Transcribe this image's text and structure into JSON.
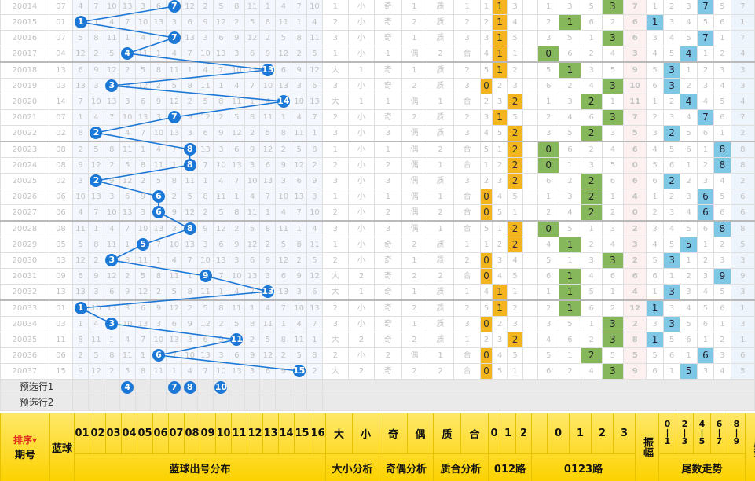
{
  "rows": [
    {
      "p": "20014",
      "b": "07",
      "pos": 7,
      "bigs": "小",
      "big": 1,
      "odd": true,
      "prime": true,
      "r012": 1,
      "r0123": 3,
      "amp": "7",
      "tail": 7,
      "sep": false
    },
    {
      "p": "20015",
      "b": "01",
      "pos": 1,
      "bigs": "小",
      "big": 1,
      "odd": true,
      "prime": true,
      "r012": 1,
      "r0123": 1,
      "amp": "6",
      "tail": 1,
      "sep": false
    },
    {
      "p": "20016",
      "b": "07",
      "pos": 7,
      "bigs": "小",
      "big": 1,
      "odd": true,
      "prime": true,
      "r012": 1,
      "r0123": 3,
      "amp": "6",
      "tail": 7,
      "sep": false
    },
    {
      "p": "20017",
      "b": "04",
      "pos": 4,
      "bigs": "小",
      "big": 1,
      "odd": false,
      "prime": false,
      "r012": 1,
      "r0123": 0,
      "amp": "3",
      "tail": 4,
      "sep": false
    },
    {
      "p": "20018",
      "b": "13",
      "pos": 13,
      "bigs": "大",
      "big": 2,
      "odd": true,
      "prime": true,
      "r012": 1,
      "r0123": 1,
      "amp": "9",
      "tail": 3,
      "sep": true
    },
    {
      "p": "20019",
      "b": "03",
      "pos": 3,
      "bigs": "小",
      "big": 1,
      "odd": true,
      "prime": true,
      "r012": 0,
      "r0123": 3,
      "amp": "10",
      "tail": 3,
      "sep": false
    },
    {
      "p": "20020",
      "b": "14",
      "pos": 14,
      "bigs": "大",
      "big": 2,
      "odd": false,
      "prime": false,
      "r012": 2,
      "r0123": 2,
      "amp": "11",
      "tail": 4,
      "sep": false
    },
    {
      "p": "20021",
      "b": "07",
      "pos": 7,
      "bigs": "小",
      "big": 1,
      "odd": true,
      "prime": true,
      "r012": 1,
      "r0123": 3,
      "amp": "7",
      "tail": 7,
      "sep": false
    },
    {
      "p": "20022",
      "b": "02",
      "pos": 2,
      "bigs": "小",
      "big": 1,
      "odd": false,
      "prime": true,
      "r012": 2,
      "r0123": 2,
      "amp": "5",
      "tail": 2,
      "sep": false
    },
    {
      "p": "20023",
      "b": "08",
      "pos": 8,
      "bigs": "小",
      "big": 1,
      "odd": false,
      "prime": false,
      "r012": 2,
      "r0123": 0,
      "amp": "6",
      "tail": 8,
      "sep": true
    },
    {
      "p": "20024",
      "b": "08",
      "pos": 8,
      "bigs": "小",
      "big": 1,
      "odd": false,
      "prime": false,
      "r012": 2,
      "r0123": 0,
      "amp": "0",
      "tail": 8,
      "sep": false
    },
    {
      "p": "20025",
      "b": "02",
      "pos": 2,
      "bigs": "小",
      "big": 1,
      "odd": false,
      "prime": true,
      "r012": 2,
      "r0123": 2,
      "amp": "6",
      "tail": 2,
      "sep": false
    },
    {
      "p": "20026",
      "b": "06",
      "pos": 6,
      "bigs": "小",
      "big": 1,
      "odd": false,
      "prime": false,
      "r012": 0,
      "r0123": 2,
      "amp": "4",
      "tail": 6,
      "sep": false
    },
    {
      "p": "20027",
      "b": "06",
      "pos": 6,
      "bigs": "小",
      "big": 1,
      "odd": false,
      "prime": false,
      "r012": 0,
      "r0123": 2,
      "amp": "0",
      "tail": 6,
      "sep": false
    },
    {
      "p": "20028",
      "b": "08",
      "pos": 8,
      "bigs": "小",
      "big": 1,
      "odd": false,
      "prime": false,
      "r012": 2,
      "r0123": 0,
      "amp": "2",
      "tail": 8,
      "sep": true
    },
    {
      "p": "20029",
      "b": "05",
      "pos": 5,
      "bigs": "小",
      "big": 1,
      "odd": true,
      "prime": true,
      "r012": 2,
      "r0123": 1,
      "amp": "3",
      "tail": 5,
      "sep": false
    },
    {
      "p": "20030",
      "b": "03",
      "pos": 3,
      "bigs": "小",
      "big": 1,
      "odd": true,
      "prime": true,
      "r012": 0,
      "r0123": 3,
      "amp": "2",
      "tail": 3,
      "sep": false
    },
    {
      "p": "20031",
      "b": "09",
      "pos": 9,
      "bigs": "大",
      "big": 2,
      "odd": true,
      "prime": false,
      "r012": 0,
      "r0123": 1,
      "amp": "6",
      "tail": 9,
      "sep": false
    },
    {
      "p": "20032",
      "b": "13",
      "pos": 13,
      "bigs": "大",
      "big": 2,
      "odd": true,
      "prime": true,
      "r012": 1,
      "r0123": 1,
      "amp": "4",
      "tail": 3,
      "sep": false
    },
    {
      "p": "20033",
      "b": "01",
      "pos": 1,
      "bigs": "小",
      "big": 1,
      "odd": true,
      "prime": true,
      "r012": 1,
      "r0123": 1,
      "amp": "12",
      "tail": 1,
      "sep": true
    },
    {
      "p": "20034",
      "b": "03",
      "pos": 3,
      "bigs": "小",
      "big": 1,
      "odd": true,
      "prime": true,
      "r012": 0,
      "r0123": 3,
      "amp": "2",
      "tail": 3,
      "sep": false
    },
    {
      "p": "20035",
      "b": "11",
      "pos": 11,
      "bigs": "大",
      "big": 2,
      "odd": true,
      "prime": true,
      "r012": 2,
      "r0123": 3,
      "amp": "8",
      "tail": 1,
      "sep": false
    },
    {
      "p": "20036",
      "b": "06",
      "pos": 6,
      "bigs": "小",
      "big": 1,
      "odd": false,
      "prime": false,
      "r012": 0,
      "r0123": 2,
      "amp": "5",
      "tail": 6,
      "sep": false
    },
    {
      "p": "20037",
      "b": "15",
      "pos": 15,
      "bigs": "大",
      "big": 2,
      "odd": true,
      "prime": false,
      "r012": 0,
      "r0123": 3,
      "amp": "9",
      "tail": 5,
      "sep": false
    }
  ],
  "labels": {
    "small": "小",
    "big": "大",
    "odd": "奇",
    "even": "偶",
    "prime": "质",
    "composite": "合"
  },
  "preselect": [
    {
      "label": "预选行1",
      "balls": [
        "04",
        "07",
        "08",
        "10"
      ]
    },
    {
      "label": "预选行2",
      "balls": []
    }
  ],
  "header": {
    "sort": "排序▾",
    "period": "期号",
    "blue": "蓝球",
    "nums": [
      "01",
      "02",
      "03",
      "04",
      "05",
      "06",
      "07",
      "08",
      "09",
      "10",
      "11",
      "12",
      "13",
      "14",
      "15",
      "16"
    ],
    "bigsmall": [
      "大",
      "小"
    ],
    "oddeven": [
      "奇",
      "偶"
    ],
    "primecomp": [
      "质",
      "合"
    ],
    "r012": [
      "0",
      "1",
      "2"
    ],
    "r0123": [
      "0",
      "1",
      "2",
      "3"
    ],
    "amplitude": "振幅",
    "tailtrend_top": [
      "0|1",
      "2|3",
      "4|5",
      "6|7",
      "8|9"
    ],
    "tail_label": "尾数",
    "groups": {
      "dist": "蓝球出号分布",
      "bigsmall": "大小分析",
      "oddeven": "奇偶分析",
      "primecomp": "质合分析",
      "r012": "012路",
      "r0123": "0123路",
      "tailtrend": "尾数走势"
    }
  },
  "colors": {
    "ball": "#1c78d6",
    "header": "#fcd200",
    "hit_yellow": "#f3b51d",
    "hit_green": "#86b85b",
    "hit_tail": "#7ec8e6"
  }
}
